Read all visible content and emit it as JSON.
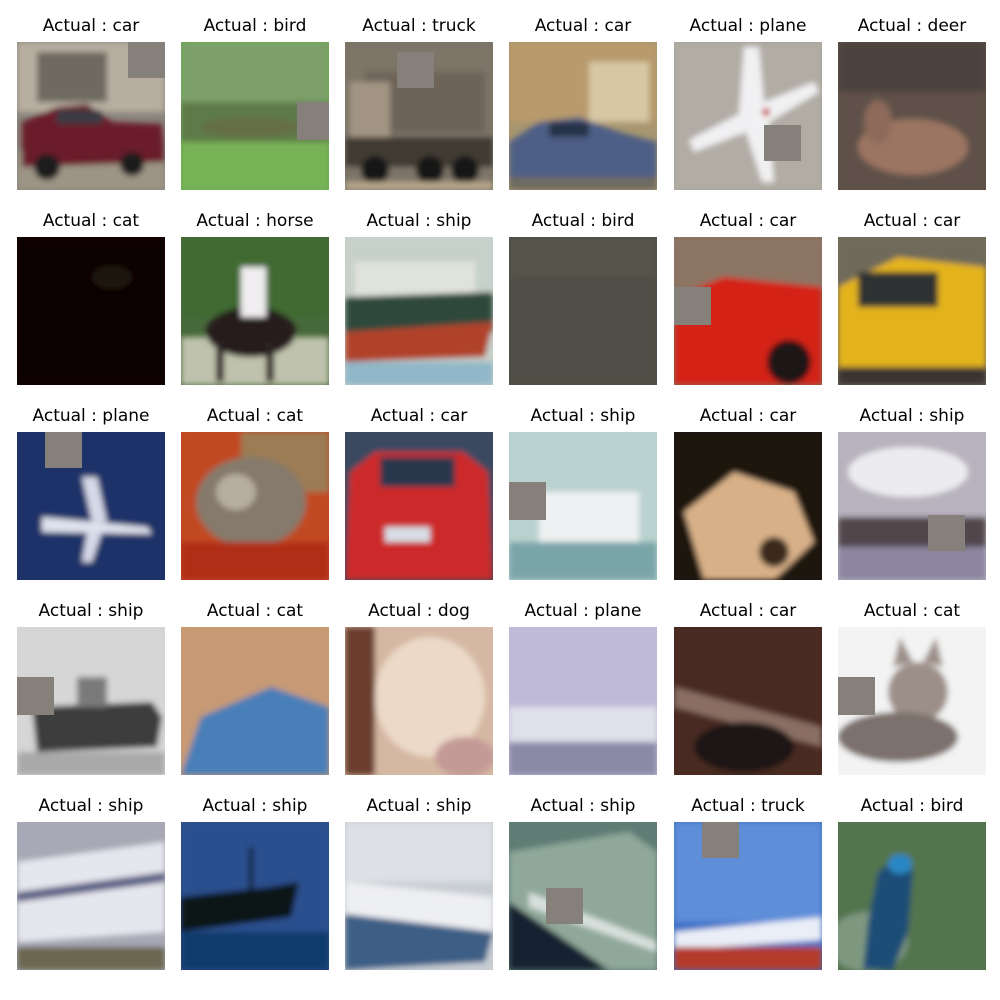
{
  "caption_prefix": "Actual : ",
  "occlusion_color": "#858079",
  "rows": [
    [
      {
        "label": "car",
        "subject": "maroon-pickup-truck",
        "bg": "#8a857c",
        "occlusion": "top-right"
      },
      {
        "label": "bird",
        "subject": "blurred-green-field",
        "bg": "#6aa84f",
        "occlusion": "right"
      },
      {
        "label": "truck",
        "subject": "dump-truck",
        "bg": "#7d7468",
        "occlusion": "top-center"
      },
      {
        "label": "car",
        "subject": "blue-sedan",
        "bg": "#a89670",
        "occlusion": "none"
      },
      {
        "label": "plane",
        "subject": "white-airplane",
        "bg": "#a7a29a",
        "occlusion": "bottom-right"
      },
      {
        "label": "deer",
        "subject": "brown-deer",
        "bg": "#5f5148",
        "occlusion": "none"
      }
    ],
    [
      {
        "label": "cat",
        "subject": "dark-image",
        "bg": "#0a0502",
        "occlusion": "none"
      },
      {
        "label": "horse",
        "subject": "horse-rider",
        "bg": "#47693a",
        "occlusion": "none"
      },
      {
        "label": "ship",
        "subject": "red-hull-ship",
        "bg": "#c7d1cb",
        "occlusion": "none"
      },
      {
        "label": "bird",
        "subject": "dark-olive-blur",
        "bg": "#4f4e44",
        "occlusion": "none"
      },
      {
        "label": "car",
        "subject": "red-car-closeup",
        "bg": "#8c7563",
        "occlusion": "left"
      },
      {
        "label": "car",
        "subject": "yellow-taxi",
        "bg": "#6f6a5a",
        "occlusion": "none"
      }
    ],
    [
      {
        "label": "plane",
        "subject": "airplane-blue-sky",
        "bg": "#1b3267",
        "occlusion": "top-left"
      },
      {
        "label": "cat",
        "subject": "tabby-cat",
        "bg": "#c14a24",
        "occlusion": "none"
      },
      {
        "label": "car",
        "subject": "red-car-rear",
        "bg": "#3a4a60",
        "occlusion": "none"
      },
      {
        "label": "ship",
        "subject": "white-boat",
        "bg": "#b9d1cf",
        "occlusion": "left"
      },
      {
        "label": "car",
        "subject": "tan-closeup",
        "bg": "#1d140e",
        "occlusion": "none"
      },
      {
        "label": "ship",
        "subject": "ship-clouds",
        "bg": "#b7b2bd",
        "occlusion": "bottom-right"
      }
    ],
    [
      {
        "label": "ship",
        "subject": "grey-warship",
        "bg": "#d6d6d6",
        "occlusion": "left"
      },
      {
        "label": "cat",
        "subject": "cat-blue-cloth",
        "bg": "#c79a74",
        "occlusion": "none"
      },
      {
        "label": "dog",
        "subject": "pale-dog-closeup",
        "bg": "#d5b8a3",
        "occlusion": "none"
      },
      {
        "label": "plane",
        "subject": "pale-plane",
        "bg": "#bfbad8",
        "occlusion": "none"
      },
      {
        "label": "car",
        "subject": "dark-car-closeup",
        "bg": "#4a2a22",
        "occlusion": "none"
      },
      {
        "label": "cat",
        "subject": "grey-cat-white",
        "bg": "#f3f3f3",
        "occlusion": "left"
      }
    ],
    [
      {
        "label": "ship",
        "subject": "cruise-ship",
        "bg": "#a8a8b6",
        "occlusion": "none"
      },
      {
        "label": "ship",
        "subject": "ship-silhouette",
        "bg": "#2c4f8e",
        "occlusion": "none"
      },
      {
        "label": "ship",
        "subject": "white-motorboat",
        "bg": "#c8cdd3",
        "occlusion": "none"
      },
      {
        "label": "ship",
        "subject": "boat-wake",
        "bg": "#5f7d75",
        "occlusion": "center"
      },
      {
        "label": "truck",
        "subject": "blue-sky-red-ground",
        "bg": "#3e70c4",
        "occlusion": "top-left"
      },
      {
        "label": "bird",
        "subject": "peacock",
        "bg": "#53744d",
        "occlusion": "none"
      }
    ]
  ]
}
